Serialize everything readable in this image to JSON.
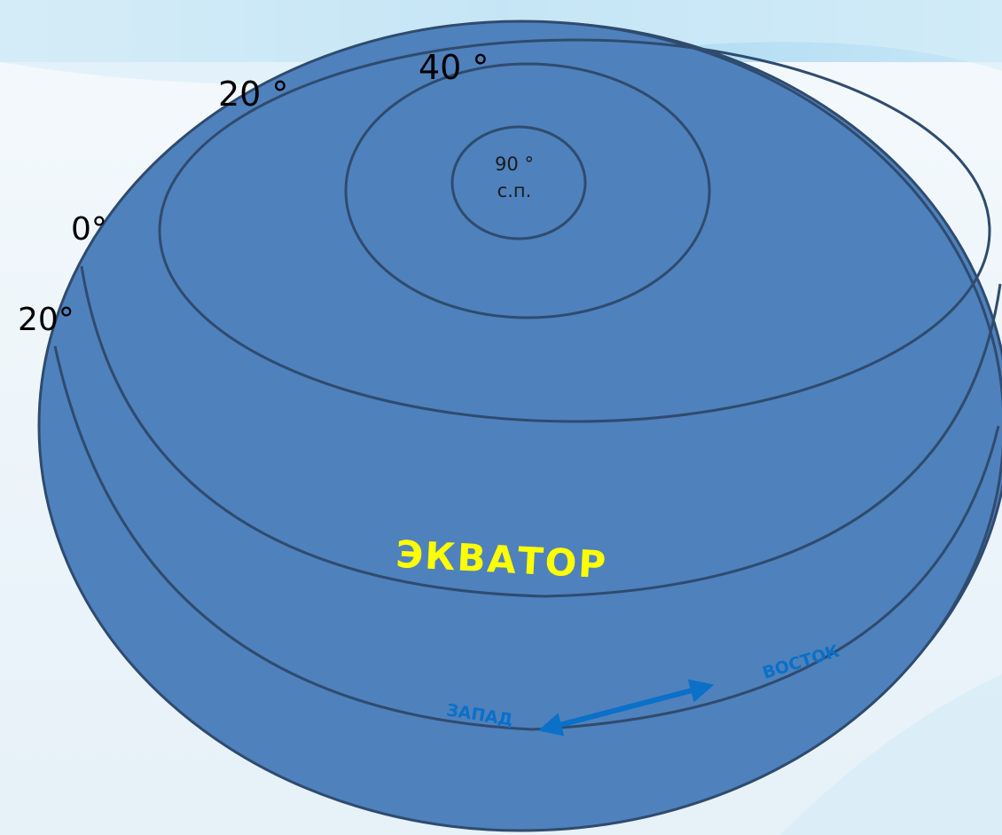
{
  "colors": {
    "globe_fill": "#4f81bd",
    "globe_stroke": "#2f4b6e",
    "equator_label": "#ffff00",
    "direction": "#0a70c8",
    "header_band": "#bfe3f7"
  },
  "labels": {
    "lat_40": "40 °",
    "lat_20_top": "20 °",
    "lat_0": "0°",
    "lat_20_bottom": "20°",
    "pole_degree": "90 °",
    "pole_abbrev": "с.п.",
    "equator": "ЭКВАТОР",
    "west": "ЗАПАД",
    "east": "ВОСТОК"
  },
  "icons": {
    "direction_arrow": "double-headed-arrow-icon"
  }
}
